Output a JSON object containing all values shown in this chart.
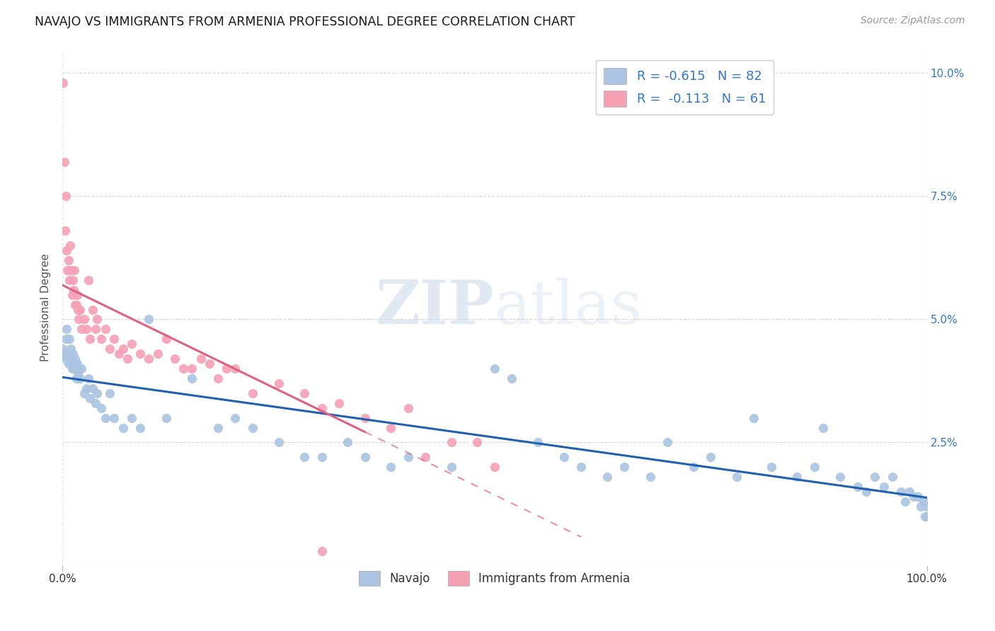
{
  "title": "NAVAJO VS IMMIGRANTS FROM ARMENIA PROFESSIONAL DEGREE CORRELATION CHART",
  "source": "Source: ZipAtlas.com",
  "ylabel": "Professional Degree",
  "xlim": [
    0.0,
    1.0
  ],
  "ylim": [
    0.0,
    0.105
  ],
  "ytick_vals": [
    0.0,
    0.025,
    0.05,
    0.075,
    0.1
  ],
  "ytick_labels": [
    "",
    "2.5%",
    "5.0%",
    "7.5%",
    "10.0%"
  ],
  "watermark_zip": "ZIP",
  "watermark_atlas": "atlas",
  "navajo_R": "-0.615",
  "navajo_N": "82",
  "armenia_R": "-0.113",
  "armenia_N": "61",
  "navajo_color": "#aac4e2",
  "armenia_color": "#f5a0b5",
  "navajo_line_color": "#2060b0",
  "armenia_line_color": "#e06080",
  "background_color": "#ffffff",
  "grid_color": "#cccccc",
  "tick_label_color": "#3377cc",
  "navajo_x": [
    0.001,
    0.002,
    0.003,
    0.004,
    0.005,
    0.006,
    0.007,
    0.008,
    0.009,
    0.01,
    0.011,
    0.012,
    0.013,
    0.014,
    0.015,
    0.016,
    0.017,
    0.018,
    0.019,
    0.02,
    0.022,
    0.025,
    0.028,
    0.03,
    0.032,
    0.035,
    0.038,
    0.04,
    0.045,
    0.05,
    0.055,
    0.06,
    0.07,
    0.08,
    0.09,
    0.1,
    0.12,
    0.15,
    0.18,
    0.2,
    0.22,
    0.25,
    0.28,
    0.3,
    0.33,
    0.35,
    0.38,
    0.4,
    0.45,
    0.5,
    0.52,
    0.55,
    0.58,
    0.6,
    0.63,
    0.65,
    0.68,
    0.7,
    0.73,
    0.75,
    0.78,
    0.8,
    0.82,
    0.85,
    0.87,
    0.88,
    0.9,
    0.92,
    0.93,
    0.94,
    0.95,
    0.96,
    0.97,
    0.975,
    0.98,
    0.985,
    0.99,
    0.993,
    0.996,
    0.998,
    1.0,
    1.0
  ],
  "navajo_y": [
    0.044,
    0.043,
    0.042,
    0.046,
    0.048,
    0.043,
    0.041,
    0.046,
    0.042,
    0.044,
    0.04,
    0.043,
    0.041,
    0.04,
    0.042,
    0.038,
    0.041,
    0.039,
    0.04,
    0.038,
    0.04,
    0.035,
    0.036,
    0.038,
    0.034,
    0.036,
    0.033,
    0.035,
    0.032,
    0.03,
    0.035,
    0.03,
    0.028,
    0.03,
    0.028,
    0.05,
    0.03,
    0.038,
    0.028,
    0.03,
    0.028,
    0.025,
    0.022,
    0.022,
    0.025,
    0.022,
    0.02,
    0.022,
    0.02,
    0.04,
    0.038,
    0.025,
    0.022,
    0.02,
    0.018,
    0.02,
    0.018,
    0.025,
    0.02,
    0.022,
    0.018,
    0.03,
    0.02,
    0.018,
    0.02,
    0.028,
    0.018,
    0.016,
    0.015,
    0.018,
    0.016,
    0.018,
    0.015,
    0.013,
    0.015,
    0.014,
    0.014,
    0.012,
    0.013,
    0.01,
    0.012,
    0.01
  ],
  "armenia_x": [
    0.001,
    0.002,
    0.003,
    0.004,
    0.005,
    0.006,
    0.007,
    0.008,
    0.009,
    0.01,
    0.011,
    0.012,
    0.013,
    0.014,
    0.015,
    0.016,
    0.017,
    0.018,
    0.019,
    0.02,
    0.022,
    0.025,
    0.028,
    0.03,
    0.032,
    0.035,
    0.038,
    0.04,
    0.045,
    0.05,
    0.055,
    0.06,
    0.065,
    0.07,
    0.075,
    0.08,
    0.09,
    0.1,
    0.11,
    0.12,
    0.13,
    0.14,
    0.15,
    0.16,
    0.17,
    0.18,
    0.19,
    0.2,
    0.22,
    0.25,
    0.28,
    0.3,
    0.32,
    0.35,
    0.38,
    0.4,
    0.42,
    0.45,
    0.48,
    0.5,
    0.3
  ],
  "armenia_y": [
    0.098,
    0.082,
    0.068,
    0.075,
    0.064,
    0.06,
    0.062,
    0.058,
    0.065,
    0.06,
    0.055,
    0.058,
    0.056,
    0.06,
    0.053,
    0.053,
    0.055,
    0.052,
    0.05,
    0.052,
    0.048,
    0.05,
    0.048,
    0.058,
    0.046,
    0.052,
    0.048,
    0.05,
    0.046,
    0.048,
    0.044,
    0.046,
    0.043,
    0.044,
    0.042,
    0.045,
    0.043,
    0.042,
    0.043,
    0.046,
    0.042,
    0.04,
    0.04,
    0.042,
    0.041,
    0.038,
    0.04,
    0.04,
    0.035,
    0.037,
    0.035,
    0.032,
    0.033,
    0.03,
    0.028,
    0.032,
    0.022,
    0.025,
    0.025,
    0.02,
    0.003
  ]
}
